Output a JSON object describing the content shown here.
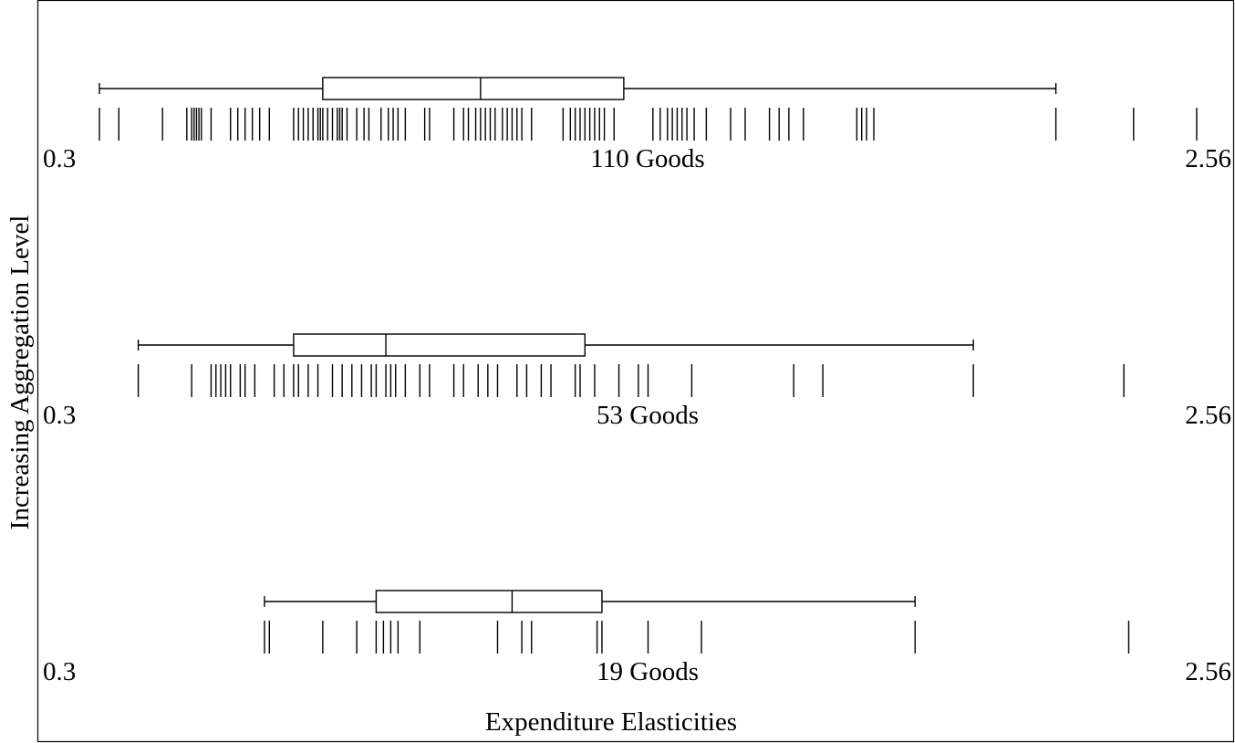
{
  "chart_data": {
    "type": "boxplot-rug",
    "xlabel": "Expenditure Elasticities",
    "ylabel": "Increasing Aggregation Level",
    "xlim": [
      0.3,
      2.56
    ],
    "panels": [
      {
        "label": "110 Goods",
        "min_label": "0.3",
        "max_label": "2.56",
        "box": {
          "whisker_low": 0.3,
          "q1": 0.76,
          "median": 1.085,
          "q3": 1.38,
          "whisker_high": 2.27
        },
        "rug": [
          0.3,
          0.34,
          0.43,
          0.48,
          0.49,
          0.495,
          0.5,
          0.505,
          0.51,
          0.53,
          0.57,
          0.585,
          0.6,
          0.615,
          0.63,
          0.65,
          0.7,
          0.71,
          0.72,
          0.73,
          0.74,
          0.75,
          0.755,
          0.76,
          0.77,
          0.78,
          0.79,
          0.795,
          0.8,
          0.81,
          0.83,
          0.845,
          0.855,
          0.88,
          0.895,
          0.905,
          0.915,
          0.93,
          0.97,
          0.98,
          1.03,
          1.05,
          1.06,
          1.075,
          1.085,
          1.095,
          1.105,
          1.115,
          1.13,
          1.14,
          1.15,
          1.16,
          1.17,
          1.19,
          1.255,
          1.27,
          1.28,
          1.29,
          1.3,
          1.31,
          1.32,
          1.33,
          1.34,
          1.36,
          1.44,
          1.455,
          1.47,
          1.48,
          1.49,
          1.5,
          1.51,
          1.525,
          1.55,
          1.6,
          1.63,
          1.68,
          1.7,
          1.72,
          1.75,
          1.86,
          1.87,
          1.88,
          1.895,
          2.27,
          2.43,
          2.56
        ]
      },
      {
        "label": "53 Goods",
        "min_label": "0.3",
        "max_label": "2.56",
        "box": {
          "whisker_low": 0.38,
          "q1": 0.7,
          "median": 0.89,
          "q3": 1.3,
          "whisker_high": 2.1
        },
        "rug": [
          0.38,
          0.49,
          0.53,
          0.54,
          0.55,
          0.56,
          0.57,
          0.59,
          0.6,
          0.62,
          0.66,
          0.68,
          0.7,
          0.71,
          0.73,
          0.75,
          0.78,
          0.8,
          0.82,
          0.84,
          0.86,
          0.87,
          0.89,
          0.9,
          0.91,
          0.93,
          0.96,
          0.98,
          1.03,
          1.05,
          1.08,
          1.1,
          1.12,
          1.16,
          1.18,
          1.21,
          1.23,
          1.28,
          1.29,
          1.32,
          1.37,
          1.41,
          1.43,
          1.52,
          1.73,
          1.79,
          2.1,
          2.41
        ]
      },
      {
        "label": "19 Goods",
        "min_label": "0.3",
        "max_label": "2.56",
        "box": {
          "whisker_low": 0.64,
          "q1": 0.87,
          "median": 1.15,
          "q3": 1.335,
          "whisker_high": 1.98
        },
        "rug": [
          0.64,
          0.65,
          0.76,
          0.83,
          0.87,
          0.885,
          0.9,
          0.915,
          0.96,
          1.12,
          1.17,
          1.19,
          1.325,
          1.335,
          1.43,
          1.54,
          1.98,
          2.42
        ]
      }
    ]
  }
}
